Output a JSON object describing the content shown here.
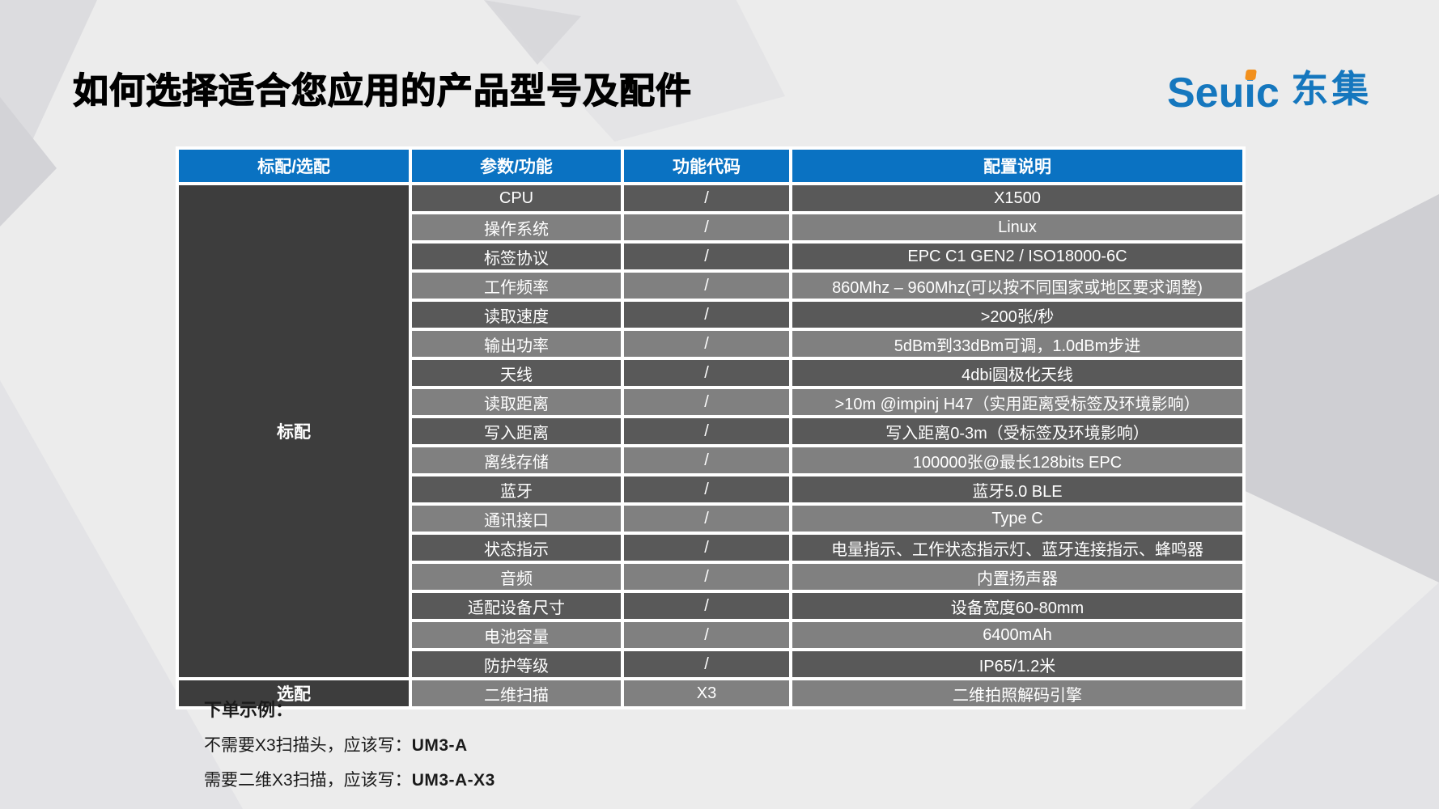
{
  "slide": {
    "title": "如何选择适合您应用的产品型号及配件",
    "logo": {
      "latin": "Seuic",
      "cjk": "东集"
    }
  },
  "table": {
    "headers": [
      "标配/选配",
      "参数/功能",
      "功能代码",
      "配置说明"
    ],
    "standard_label": "标配",
    "optional_label": "选配",
    "rows": [
      {
        "param": "CPU",
        "code": "/",
        "desc": "X1500"
      },
      {
        "param": "操作系统",
        "code": "/",
        "desc": "Linux"
      },
      {
        "param": "标签协议",
        "code": "/",
        "desc": "EPC C1 GEN2 / ISO18000-6C"
      },
      {
        "param": "工作频率",
        "code": "/",
        "desc": "860Mhz – 960Mhz(可以按不同国家或地区要求调整)"
      },
      {
        "param": "读取速度",
        "code": "/",
        "desc": ">200张/秒"
      },
      {
        "param": "输出功率",
        "code": "/",
        "desc": "5dBm到33dBm可调，1.0dBm步进"
      },
      {
        "param": "天线",
        "code": "/",
        "desc": "4dbi圆极化天线"
      },
      {
        "param": "读取距离",
        "code": "/",
        "desc": ">10m @impinj H47（实用距离受标签及环境影响）"
      },
      {
        "param": "写入距离",
        "code": "/",
        "desc": "写入距离0-3m（受标签及环境影响）"
      },
      {
        "param": "离线存储",
        "code": "/",
        "desc": "100000张@最长128bits EPC"
      },
      {
        "param": "蓝牙",
        "code": "/",
        "desc": "蓝牙5.0 BLE"
      },
      {
        "param": "通讯接口",
        "code": "/",
        "desc": "Type C"
      },
      {
        "param": "状态指示",
        "code": "/",
        "desc": "电量指示、工作状态指示灯、蓝牙连接指示、蜂鸣器"
      },
      {
        "param": "音频",
        "code": "/",
        "desc": "内置扬声器"
      },
      {
        "param": "适配设备尺寸",
        "code": "/",
        "desc": "设备宽度60-80mm"
      },
      {
        "param": "电池容量",
        "code": "/",
        "desc": "6400mAh"
      },
      {
        "param": "防护等级",
        "code": "/",
        "desc": "IP65/1.2米"
      }
    ],
    "optional_row": {
      "param": "二维扫描",
      "code": "X3",
      "desc": "二维拍照解码引擎"
    }
  },
  "footer": {
    "heading": "下单示例：",
    "line1_prefix": "不需要X3扫描头，应该写：",
    "line1_model": "UM3-A",
    "line2_prefix": "需要二维X3扫描，应该写：",
    "line2_model": "UM3-A-X3"
  },
  "colors": {
    "header_blue": "#0A72C2",
    "row_dark": "#595959",
    "row_light": "#808080",
    "side_dark": "#3D3D3D",
    "logo_blue": "#1577BE",
    "logo_orange": "#F2901D"
  }
}
